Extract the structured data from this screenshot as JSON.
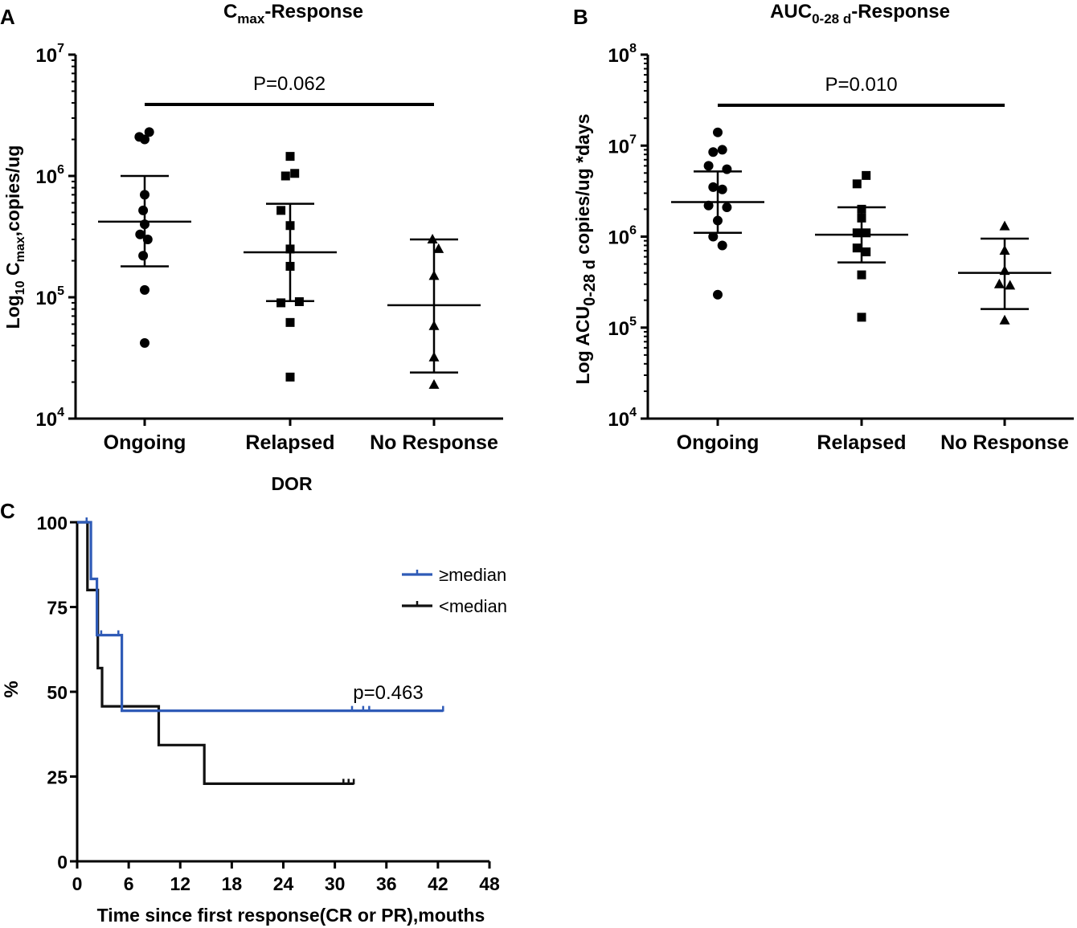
{
  "chart_data": [
    {
      "panel": "A",
      "type": "scatter",
      "title_main": "C",
      "title_sub": "max",
      "title_rest": "-Response",
      "ylabel_pre": "Log",
      "ylabel_sub1": "10",
      "ylabel_mid": " C",
      "ylabel_sub2": "max",
      "ylabel_post": ",copies/ug",
      "xlabel": "DOR",
      "yscale": "log",
      "ylim": [
        10000,
        10000000
      ],
      "yticks": [
        {
          "value": 10000,
          "base": "10",
          "exp": "4"
        },
        {
          "value": 100000,
          "base": "10",
          "exp": "5"
        },
        {
          "value": 1000000,
          "base": "10",
          "exp": "6"
        },
        {
          "value": 10000000,
          "base": "10",
          "exp": "7"
        }
      ],
      "categories": [
        "Ongoing",
        "Relapsed",
        "No Response"
      ],
      "markers": [
        "circle",
        "square",
        "triangle"
      ],
      "groups": [
        {
          "name": "Ongoing",
          "marker": "circle",
          "mean": 420000,
          "lower": 180000,
          "upper": 1000000,
          "points": [
            [
              -0.07,
              2100000
            ],
            [
              0,
              2000000
            ],
            [
              0.06,
              2300000
            ],
            [
              0,
              700000
            ],
            [
              -0.02,
              520000
            ],
            [
              0,
              400000
            ],
            [
              -0.06,
              330000
            ],
            [
              0.04,
              300000
            ],
            [
              -0.02,
              220000
            ],
            [
              0,
              115000
            ],
            [
              0,
              42000
            ]
          ]
        },
        {
          "name": "Relapsed",
          "marker": "square",
          "mean": 235000,
          "lower": 93000,
          "upper": 590000,
          "points": [
            [
              0,
              1450000
            ],
            [
              -0.06,
              1000000
            ],
            [
              0.06,
              1050000
            ],
            [
              -0.12,
              520000
            ],
            [
              0,
              390000
            ],
            [
              0,
              250000
            ],
            [
              0,
              180000
            ],
            [
              -0.12,
              90000
            ],
            [
              0.12,
              92000
            ],
            [
              0,
              62000
            ],
            [
              0,
              22000
            ]
          ]
        },
        {
          "name": "No Response",
          "marker": "triangle",
          "mean": 86000,
          "lower": 24000,
          "upper": 300000,
          "points": [
            [
              -0.02,
              300000
            ],
            [
              0.06,
              250000
            ],
            [
              0,
              150000
            ],
            [
              0,
              58000
            ],
            [
              0,
              32000
            ],
            [
              0,
              19000
            ]
          ]
        }
      ],
      "annotation": {
        "text": "P=0.062",
        "from": "Ongoing",
        "to": "No Response"
      }
    },
    {
      "panel": "B",
      "type": "scatter",
      "title_main": "AUC",
      "title_sub": "0-28 d",
      "title_rest": "-Response",
      "ylabel_pre": "Log ACU",
      "ylabel_sub1": "0-28 d",
      "ylabel_post": " copies/ug *days",
      "yscale": "log",
      "ylim": [
        10000,
        100000000
      ],
      "yticks": [
        {
          "value": 10000,
          "base": "10",
          "exp": "4"
        },
        {
          "value": 100000,
          "base": "10",
          "exp": "5"
        },
        {
          "value": 1000000,
          "base": "10",
          "exp": "6"
        },
        {
          "value": 10000000,
          "base": "10",
          "exp": "7"
        },
        {
          "value": 100000000,
          "base": "10",
          "exp": "8"
        }
      ],
      "categories": [
        "Ongoing",
        "Relapsed",
        "No Response"
      ],
      "markers": [
        "circle",
        "square",
        "triangle"
      ],
      "groups": [
        {
          "name": "Ongoing",
          "marker": "circle",
          "mean": 2400000,
          "lower": 1100000,
          "upper": 5200000,
          "points": [
            [
              0,
              14000000
            ],
            [
              -0.06,
              8500000
            ],
            [
              0.06,
              9000000
            ],
            [
              -0.12,
              6000000
            ],
            [
              0.12,
              5500000
            ],
            [
              -0.06,
              3500000
            ],
            [
              0.06,
              3300000
            ],
            [
              -0.12,
              2200000
            ],
            [
              0.12,
              2100000
            ],
            [
              0,
              1500000
            ],
            [
              -0.06,
              1000000
            ],
            [
              0.06,
              800000
            ],
            [
              0,
              230000
            ]
          ]
        },
        {
          "name": "Relapsed",
          "marker": "square",
          "mean": 1050000,
          "lower": 520000,
          "upper": 2100000,
          "points": [
            [
              0.06,
              4700000
            ],
            [
              -0.06,
              3800000
            ],
            [
              0,
              2000000
            ],
            [
              0,
              1600000
            ],
            [
              -0.06,
              1100000
            ],
            [
              0.06,
              1100000
            ],
            [
              -0.06,
              750000
            ],
            [
              0.06,
              680000
            ],
            [
              0,
              380000
            ],
            [
              0,
              130000
            ]
          ]
        },
        {
          "name": "No Response",
          "marker": "triangle",
          "mean": 400000,
          "lower": 160000,
          "upper": 950000,
          "points": [
            [
              0,
              1300000
            ],
            [
              0,
              700000
            ],
            [
              0,
              420000
            ],
            [
              -0.07,
              300000
            ],
            [
              0.07,
              290000
            ],
            [
              0,
              120000
            ]
          ]
        }
      ],
      "annotation": {
        "text": "P=0.010",
        "from": "Ongoing",
        "to": "No Response"
      }
    },
    {
      "panel": "C",
      "type": "line",
      "subtype": "kaplan-meier",
      "xlabel": "Time since first response(CR or PR),mouths",
      "ylabel": "%",
      "xlim": [
        0,
        48
      ],
      "ylim": [
        0,
        100
      ],
      "xticks": [
        0,
        6,
        12,
        18,
        24,
        30,
        36,
        42,
        48
      ],
      "yticks": [
        0,
        25,
        50,
        75,
        100
      ],
      "annotation": "p=0.463",
      "series": [
        {
          "name": "≥median",
          "color": "#2f5bb7",
          "steps": [
            [
              0,
              100
            ],
            [
              1.6,
              100
            ],
            [
              1.6,
              83.3
            ],
            [
              2.3,
              83.3
            ],
            [
              2.3,
              66.7
            ],
            [
              5.2,
              66.7
            ],
            [
              5.2,
              44.4
            ],
            [
              42.6,
              44.4
            ]
          ],
          "censors": [
            [
              1.1,
              100
            ],
            [
              2.8,
              66.7
            ],
            [
              4.8,
              66.7
            ],
            [
              32.0,
              44.4
            ],
            [
              33.3,
              44.4
            ],
            [
              34.0,
              44.4
            ],
            [
              42.6,
              44.4
            ]
          ]
        },
        {
          "name": "<median",
          "color": "#111111",
          "steps": [
            [
              0,
              100
            ],
            [
              1.2,
              100
            ],
            [
              1.2,
              80
            ],
            [
              2.4,
              80
            ],
            [
              2.4,
              57
            ],
            [
              2.9,
              57
            ],
            [
              2.9,
              45.7
            ],
            [
              9.5,
              45.7
            ],
            [
              9.5,
              34.3
            ],
            [
              14.8,
              34.3
            ],
            [
              14.8,
              22.9
            ],
            [
              32.2,
              22.9
            ]
          ],
          "censors": [
            [
              31.0,
              22.9
            ],
            [
              31.6,
              22.9
            ],
            [
              32.2,
              22.9
            ]
          ]
        }
      ]
    }
  ],
  "panel_labels": {
    "a": "A",
    "b": "B",
    "c": "C"
  }
}
